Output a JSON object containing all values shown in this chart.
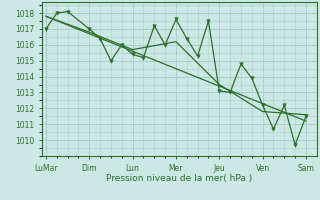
{
  "bg_color": "#cce8e4",
  "grid_color": "#aacfca",
  "line_color": "#2d6e2d",
  "marker_color": "#2d6e2d",
  "xlabel": "Pression niveau de la mer( hPa )",
  "xlabel_color": "#2d6e2d",
  "tick_color": "#2d6e2d",
  "ylim": [
    1009.3,
    1018.7
  ],
  "yticks": [
    1010,
    1011,
    1012,
    1013,
    1014,
    1015,
    1016,
    1017,
    1018
  ],
  "xtick_labels": [
    "LuMar",
    "Dim",
    "Lun",
    "Mer",
    "Jeu",
    "Ven",
    "Sam"
  ],
  "xtick_positions": [
    0,
    2,
    4,
    6,
    8,
    10,
    12
  ],
  "series1_x": [
    0,
    0.5,
    1,
    2,
    2.5,
    3,
    3.5,
    4,
    4.5,
    5,
    5.5,
    6,
    6.5,
    7,
    7.5,
    8,
    8.5,
    9,
    9.5,
    10,
    10.5,
    11,
    11.5,
    12
  ],
  "series1_y": [
    1017.0,
    1018.0,
    1018.1,
    1017.0,
    1016.4,
    1015.0,
    1016.0,
    1015.4,
    1015.2,
    1017.2,
    1016.0,
    1017.6,
    1016.4,
    1015.3,
    1017.5,
    1013.1,
    1013.0,
    1014.8,
    1013.9,
    1012.2,
    1010.7,
    1012.2,
    1009.7,
    1011.5
  ],
  "series2_x": [
    0,
    2,
    4,
    6,
    8,
    10,
    12
  ],
  "series2_y": [
    1017.8,
    1016.8,
    1015.7,
    1016.2,
    1013.5,
    1011.8,
    1011.6
  ],
  "trend_x": [
    0,
    12
  ],
  "trend_y": [
    1017.8,
    1011.2
  ],
  "xlim": [
    -0.2,
    12.5
  ],
  "figsize": [
    3.2,
    2.0
  ],
  "dpi": 100
}
